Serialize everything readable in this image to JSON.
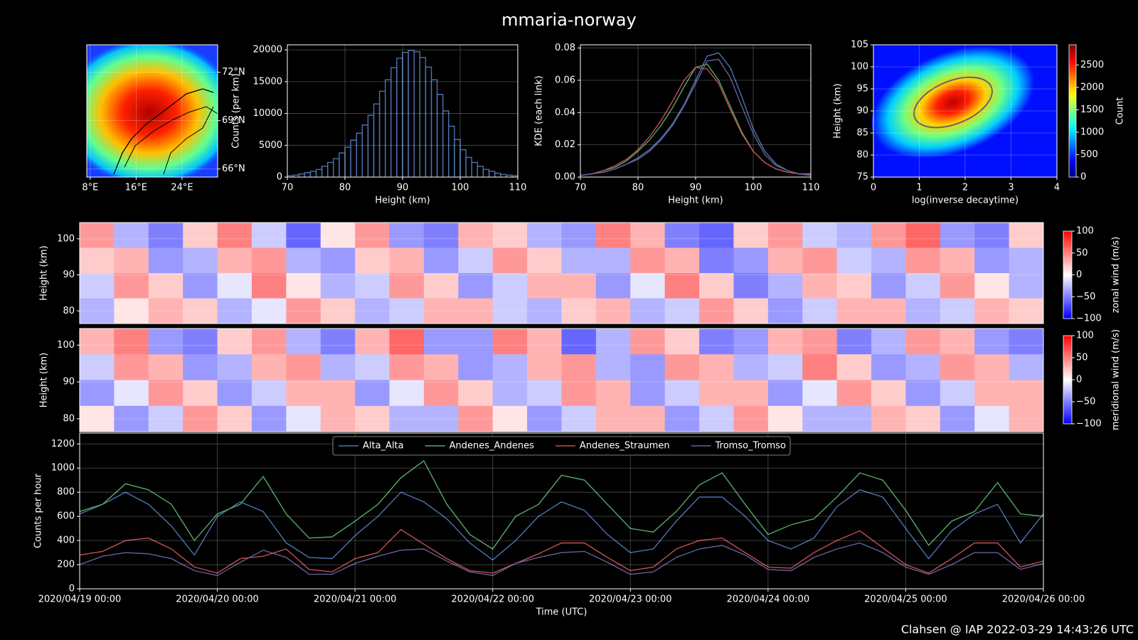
{
  "title": "mmaria-norway",
  "footer": "Clahsen @ IAP 2022-03-29 14:43:26 UTC",
  "chart_data": [
    {
      "type": "map",
      "xlim": [
        7.4,
        30.2
      ],
      "ylim": [
        65.5,
        73.7
      ],
      "xticks": [
        {
          "value": 8,
          "label": "8°E"
        },
        {
          "value": 16,
          "label": "16°E"
        },
        {
          "value": 24,
          "label": "24°E"
        }
      ],
      "yticks": [
        {
          "value": 66,
          "label": "66°N"
        },
        {
          "value": 69,
          "label": "69°N"
        },
        {
          "value": 72,
          "label": "72°N"
        }
      ],
      "grid": true
    },
    {
      "type": "histogram",
      "xlabel": "Height (km)",
      "ylabel": "Counts (per km)",
      "color": "#4c72b0",
      "bins": [
        70,
        71,
        72,
        73,
        74,
        75,
        76,
        77,
        78,
        79,
        80,
        81,
        82,
        83,
        84,
        85,
        86,
        87,
        88,
        89,
        90,
        91,
        92,
        93,
        94,
        95,
        96,
        97,
        98,
        99,
        100,
        101,
        102,
        103,
        104,
        105,
        106,
        107,
        108,
        109,
        110
      ],
      "values": [
        200,
        300,
        500,
        700,
        900,
        1200,
        1700,
        2300,
        2900,
        3800,
        4700,
        5800,
        6900,
        8200,
        9700,
        11500,
        13500,
        15300,
        17200,
        18700,
        19600,
        19900,
        19700,
        18800,
        17300,
        15300,
        13000,
        10400,
        8000,
        5900,
        4300,
        3100,
        2300,
        1700,
        1200,
        900,
        600,
        400,
        300,
        200
      ],
      "xlim": [
        70,
        110
      ],
      "ylim": [
        0,
        20800
      ],
      "xticks": [
        70,
        80,
        90,
        100,
        110
      ],
      "yticks": [
        0,
        5000,
        10000,
        15000,
        20000
      ],
      "grid": true
    },
    {
      "type": "line",
      "xlabel": "Height (km)",
      "ylabel": "KDE (each link)",
      "x": [
        70,
        72,
        74,
        76,
        78,
        80,
        82,
        84,
        86,
        88,
        90,
        92,
        94,
        96,
        98,
        100,
        102,
        104,
        106,
        108,
        110
      ],
      "series": [
        {
          "name": "Alta_Alta",
          "color": "#4c72b0",
          "values": [
            0.001,
            0.002,
            0.003,
            0.005,
            0.008,
            0.012,
            0.017,
            0.024,
            0.033,
            0.045,
            0.06,
            0.075,
            0.077,
            0.068,
            0.05,
            0.03,
            0.016,
            0.008,
            0.004,
            0.002,
            0.001
          ]
        },
        {
          "name": "Andenes_Andenes",
          "color": "#55a868",
          "values": [
            0.001,
            0.002,
            0.004,
            0.006,
            0.01,
            0.016,
            0.023,
            0.032,
            0.043,
            0.056,
            0.068,
            0.07,
            0.06,
            0.044,
            0.028,
            0.016,
            0.009,
            0.005,
            0.003,
            0.002,
            0.002
          ]
        },
        {
          "name": "Andenes_Straumen",
          "color": "#c44e52",
          "values": [
            0.001,
            0.002,
            0.004,
            0.007,
            0.011,
            0.017,
            0.025,
            0.035,
            0.047,
            0.06,
            0.068,
            0.067,
            0.058,
            0.042,
            0.027,
            0.016,
            0.009,
            0.005,
            0.003,
            0.002,
            0.002
          ]
        },
        {
          "name": "Tromso_Tromso",
          "color": "#64609a",
          "values": [
            0.001,
            0.002,
            0.003,
            0.005,
            0.008,
            0.011,
            0.016,
            0.023,
            0.032,
            0.044,
            0.058,
            0.072,
            0.073,
            0.062,
            0.044,
            0.027,
            0.014,
            0.007,
            0.004,
            0.002,
            0.001
          ]
        }
      ],
      "xlim": [
        70,
        110
      ],
      "ylim": [
        0,
        0.082
      ],
      "xticks": [
        70,
        80,
        90,
        100,
        110
      ],
      "yticks": [
        {
          "value": 0,
          "label": "0.00"
        },
        {
          "value": 0.02,
          "label": "0.02"
        },
        {
          "value": 0.04,
          "label": "0.04"
        },
        {
          "value": 0.06,
          "label": "0.06"
        },
        {
          "value": 0.08,
          "label": "0.08"
        }
      ],
      "grid": true
    },
    {
      "type": "hist2d",
      "xlabel": "log(inverse decaytime)",
      "ylabel": "Height (km)",
      "clabel": "Count",
      "colormap": "jet",
      "xlim": [
        0,
        4
      ],
      "ylim": [
        75,
        105
      ],
      "xticks": [
        0,
        1,
        2,
        3,
        4
      ],
      "yticks": [
        75,
        80,
        85,
        90,
        95,
        100,
        105
      ],
      "clim": [
        0,
        2950
      ],
      "cticks": [
        0,
        500,
        1000,
        1500,
        2000,
        2500
      ],
      "grid": true
    },
    {
      "type": "heatmap",
      "ylabel": "Height (km)",
      "clabel": "zonal wind (m/s)",
      "colormap": "bwr",
      "xlim": [
        "2020/04/19 00:00",
        "2020/04/26 00:00"
      ],
      "ylim": [
        76.5,
        104.5
      ],
      "yticks": [
        80,
        90,
        100
      ],
      "grid": true,
      "clim": [
        -100,
        100
      ],
      "cticks": [
        {
          "value": -100,
          "label": "−100"
        },
        {
          "value": -50,
          "label": "−50"
        },
        0,
        50,
        100
      ],
      "values": [
        [
          40,
          -30,
          -50,
          20,
          50,
          -20,
          -60,
          10,
          40,
          -40,
          -50,
          30,
          20,
          -30,
          -40,
          50,
          30,
          -50,
          -60,
          20,
          40,
          -20,
          -30,
          40,
          60,
          -40,
          -50,
          20
        ],
        [
          20,
          30,
          -40,
          -30,
          30,
          40,
          -30,
          -40,
          20,
          30,
          -40,
          -20,
          40,
          20,
          -30,
          -30,
          40,
          30,
          -50,
          -40,
          30,
          40,
          -20,
          -30,
          40,
          30,
          -40,
          -30
        ],
        [
          -20,
          40,
          20,
          -40,
          -10,
          50,
          10,
          -30,
          -20,
          40,
          20,
          -40,
          -20,
          30,
          30,
          -40,
          -10,
          50,
          20,
          -50,
          -30,
          30,
          20,
          -40,
          -20,
          40,
          10,
          -30
        ],
        [
          -30,
          10,
          30,
          20,
          -30,
          -10,
          40,
          20,
          -30,
          -20,
          30,
          30,
          -20,
          -30,
          20,
          30,
          -30,
          -20,
          40,
          20,
          -40,
          -20,
          30,
          30,
          -30,
          -20,
          30,
          20
        ]
      ]
    },
    {
      "type": "heatmap",
      "ylabel": "Height (km)",
      "clabel": "meridional wind (m/s)",
      "colormap": "bwr",
      "xlim": [
        "2020/04/19 00:00",
        "2020/04/26 00:00"
      ],
      "ylim": [
        76.5,
        104.5
      ],
      "yticks": [
        80,
        90,
        100
      ],
      "grid": true,
      "clim": [
        -100,
        100
      ],
      "cticks": [
        {
          "value": -100,
          "label": "−100"
        },
        {
          "value": -50,
          "label": "−50"
        },
        0,
        50,
        100
      ],
      "values": [
        [
          30,
          50,
          -40,
          -50,
          20,
          40,
          -30,
          -50,
          30,
          60,
          -40,
          -40,
          50,
          30,
          -60,
          -30,
          40,
          20,
          -50,
          -40,
          30,
          40,
          -50,
          -30,
          40,
          30,
          -40,
          -50
        ],
        [
          -20,
          40,
          30,
          -40,
          -30,
          30,
          40,
          -30,
          -20,
          40,
          30,
          -40,
          -30,
          30,
          40,
          -30,
          -40,
          40,
          30,
          -30,
          -20,
          50,
          20,
          -40,
          -30,
          40,
          30,
          -30
        ],
        [
          -40,
          -10,
          40,
          20,
          -40,
          -20,
          30,
          30,
          -40,
          -10,
          40,
          20,
          -30,
          -20,
          40,
          30,
          -40,
          -20,
          30,
          30,
          -40,
          -10,
          40,
          20,
          -40,
          -20,
          30,
          30
        ],
        [
          10,
          -40,
          -20,
          40,
          20,
          -40,
          -10,
          30,
          20,
          -30,
          -30,
          40,
          10,
          -40,
          -20,
          30,
          30,
          -40,
          -20,
          40,
          10,
          -30,
          -30,
          30,
          20,
          -40,
          -10,
          30
        ]
      ]
    },
    {
      "type": "timeseries",
      "xlabel": "Time (UTC)",
      "ylabel": "Counts per hour",
      "legend": "upper center",
      "x": [
        "2020/04/19 00:00",
        "2020/04/19 04:00",
        "2020/04/19 08:00",
        "2020/04/19 12:00",
        "2020/04/19 16:00",
        "2020/04/19 20:00",
        "2020/04/20 00:00",
        "2020/04/20 04:00",
        "2020/04/20 08:00",
        "2020/04/20 12:00",
        "2020/04/20 16:00",
        "2020/04/20 20:00",
        "2020/04/21 00:00",
        "2020/04/21 04:00",
        "2020/04/21 08:00",
        "2020/04/21 12:00",
        "2020/04/21 16:00",
        "2020/04/21 20:00",
        "2020/04/22 00:00",
        "2020/04/22 04:00",
        "2020/04/22 08:00",
        "2020/04/22 12:00",
        "2020/04/22 16:00",
        "2020/04/22 20:00",
        "2020/04/23 00:00",
        "2020/04/23 04:00",
        "2020/04/23 08:00",
        "2020/04/23 12:00",
        "2020/04/23 16:00",
        "2020/04/23 20:00",
        "2020/04/24 00:00",
        "2020/04/24 04:00",
        "2020/04/24 08:00",
        "2020/04/24 12:00",
        "2020/04/24 16:00",
        "2020/04/24 20:00",
        "2020/04/25 00:00",
        "2020/04/25 04:00",
        "2020/04/25 08:00",
        "2020/04/25 12:00",
        "2020/04/25 16:00",
        "2020/04/25 20:00",
        "2020/04/26 00:00"
      ],
      "series": [
        {
          "name": "Alta_Alta",
          "color": "#4c72b0",
          "values": [
            620,
            700,
            800,
            700,
            520,
            280,
            600,
            720,
            640,
            380,
            260,
            250,
            440,
            600,
            800,
            720,
            580,
            380,
            240,
            400,
            600,
            720,
            650,
            450,
            300,
            330,
            560,
            760,
            760,
            600,
            400,
            330,
            420,
            680,
            820,
            760,
            500,
            250,
            480,
            620,
            700,
            380,
            620
          ]
        },
        {
          "name": "Andenes_Andenes",
          "color": "#55a868",
          "values": [
            640,
            700,
            870,
            820,
            700,
            400,
            620,
            700,
            930,
            620,
            420,
            430,
            560,
            700,
            920,
            1060,
            700,
            450,
            330,
            600,
            700,
            940,
            900,
            700,
            500,
            470,
            640,
            860,
            960,
            700,
            450,
            530,
            580,
            760,
            960,
            900,
            650,
            360,
            560,
            640,
            880,
            620,
            600
          ]
        },
        {
          "name": "Andenes_Straumen",
          "color": "#c44e52",
          "values": [
            280,
            310,
            400,
            420,
            330,
            180,
            130,
            250,
            270,
            330,
            160,
            140,
            250,
            300,
            490,
            370,
            250,
            150,
            130,
            210,
            290,
            380,
            380,
            260,
            150,
            180,
            330,
            400,
            420,
            300,
            180,
            170,
            300,
            400,
            480,
            340,
            200,
            130,
            250,
            380,
            380,
            180,
            230
          ]
        },
        {
          "name": "Tromso_Tromso",
          "color": "#64609a",
          "values": [
            200,
            270,
            300,
            290,
            250,
            150,
            110,
            220,
            320,
            260,
            120,
            120,
            210,
            270,
            320,
            330,
            230,
            140,
            110,
            210,
            260,
            300,
            310,
            220,
            120,
            140,
            260,
            330,
            360,
            280,
            160,
            150,
            260,
            330,
            380,
            300,
            180,
            120,
            200,
            300,
            300,
            160,
            210
          ]
        }
      ],
      "xlim": [
        "2020/04/19 00:00",
        "2020/04/26 00:00"
      ],
      "ylim": [
        0,
        1290
      ],
      "xticks": [
        "2020/04/19 00:00",
        "2020/04/20 00:00",
        "2020/04/21 00:00",
        "2020/04/22 00:00",
        "2020/04/23 00:00",
        "2020/04/24 00:00",
        "2020/04/25 00:00",
        "2020/04/26 00:00"
      ],
      "yticks": [
        0,
        200,
        400,
        600,
        800,
        1000,
        1200
      ],
      "grid": true
    }
  ]
}
